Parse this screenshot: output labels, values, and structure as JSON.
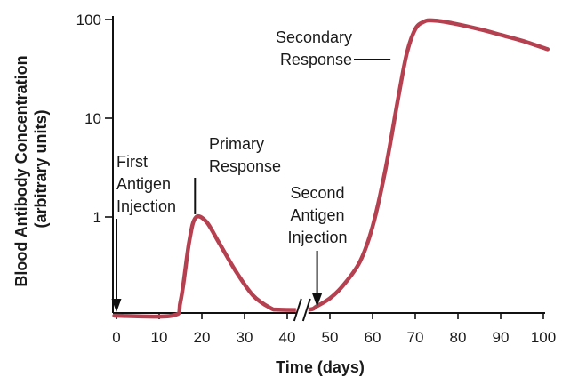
{
  "chart_data": {
    "type": "line",
    "title": "",
    "xlabel": "Time (days)",
    "ylabel_lines": [
      "Blood Antibody Concentration",
      "(arbitrary units)"
    ],
    "x_ticks": [
      0,
      10,
      20,
      30,
      40,
      50,
      60,
      70,
      80,
      90,
      100
    ],
    "x_tick_labels": [
      "0",
      "10",
      "20",
      "30",
      "40",
      "50",
      "60",
      "70",
      "80",
      "90",
      "100"
    ],
    "y_scale": "log",
    "y_ticks": [
      1,
      10,
      100
    ],
    "y_tick_labels": [
      "1",
      "10",
      "100"
    ],
    "xlim": [
      -1,
      101
    ],
    "ylim": [
      0.1,
      100
    ],
    "axis_break_x": 43.5,
    "line_color": "#b5404f",
    "series": [
      {
        "values": [
          [
            -0.5,
            0.1
          ],
          [
            13,
            0.1
          ],
          [
            15,
            0.14
          ],
          [
            17,
            0.55
          ],
          [
            18.5,
            0.98
          ],
          [
            21,
            0.9
          ],
          [
            24,
            0.55
          ],
          [
            28,
            0.28
          ],
          [
            32,
            0.16
          ],
          [
            36,
            0.12
          ],
          [
            38,
            0.115
          ],
          [
            45,
            0.115
          ],
          [
            47,
            0.125
          ],
          [
            50,
            0.15
          ],
          [
            53,
            0.2
          ],
          [
            57,
            0.35
          ],
          [
            60,
            0.8
          ],
          [
            63,
            3
          ],
          [
            66,
            16
          ],
          [
            68,
            45
          ],
          [
            70,
            80
          ],
          [
            72,
            95
          ],
          [
            74,
            98
          ],
          [
            78,
            93
          ],
          [
            85,
            80
          ],
          [
            90,
            70
          ],
          [
            95,
            61
          ],
          [
            101,
            50
          ]
        ]
      }
    ],
    "annotations": [
      {
        "id": "first-injection",
        "lines": [
          "First",
          "Antigen",
          "Injection"
        ],
        "arrow_to": [
          0,
          0.1
        ]
      },
      {
        "id": "primary-response",
        "lines": [
          "Primary",
          "Response"
        ],
        "points_to": [
          18.5,
          0.98
        ]
      },
      {
        "id": "second-injection",
        "lines": [
          "Second",
          "Antigen",
          "Injection"
        ],
        "arrow_to": [
          47,
          0.118
        ]
      },
      {
        "id": "secondary-response",
        "lines": [
          "Secondary",
          "Response"
        ],
        "points_to": [
          64.2,
          7
        ]
      }
    ]
  }
}
